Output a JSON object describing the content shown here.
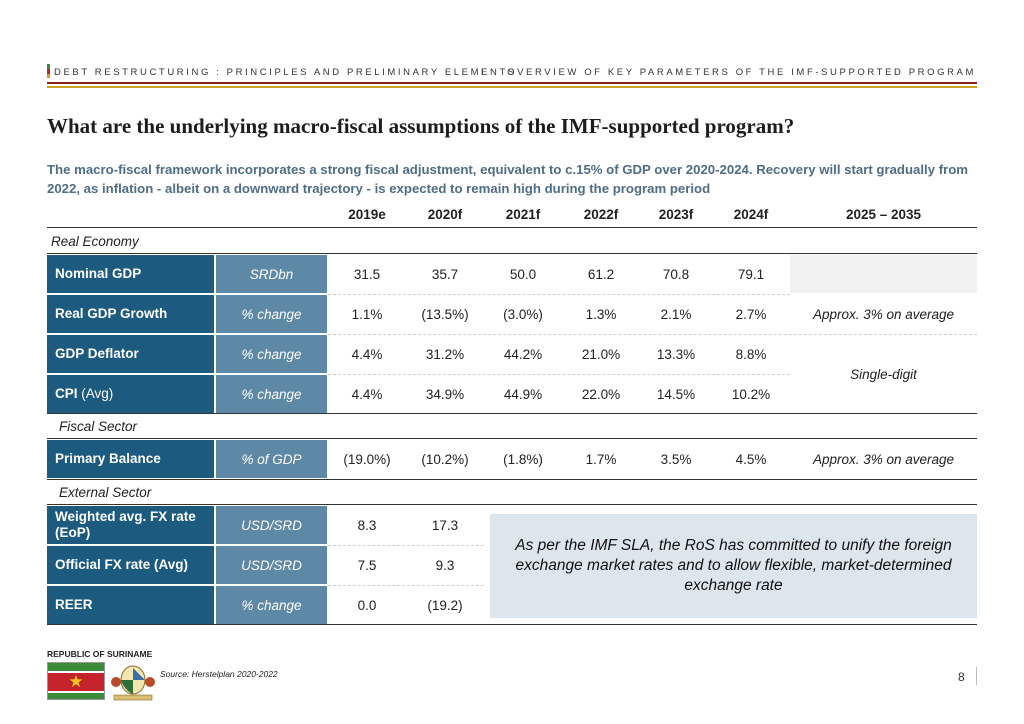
{
  "header": {
    "left": "DEBT RESTRUCTURING : PRINCIPLES AND PRELIMINARY ELEMENTS",
    "separator": "I",
    "right": "OVERVIEW OF KEY PARAMETERS OF THE IMF-SUPPORTED PROGRAM",
    "colors": {
      "rule_red": "#8b1e1e",
      "rule_gold": "#c9a227"
    }
  },
  "title": "What are the underlying macro-fiscal assumptions of the IMF-supported program?",
  "subtitle": "The macro-fiscal framework incorporates a strong fiscal adjustment, equivalent to c.15% of GDP over 2020-2024. Recovery will start gradually from 2022, as inflation - albeit on a downward trajectory - is expected to remain high during the program period",
  "table": {
    "columns": [
      "2019e",
      "2020f",
      "2021f",
      "2022f",
      "2023f",
      "2024f",
      "2025 – 2035"
    ],
    "sections": {
      "real_economy": "Real Economy",
      "fiscal_sector": "Fiscal Sector",
      "external_sector": "External Sector"
    },
    "rows": [
      {
        "label": "Nominal GDP",
        "unit": "SRDbn",
        "values": [
          "31.5",
          "35.7",
          "50.0",
          "61.2",
          "70.8",
          "79.1"
        ]
      },
      {
        "label": "Real GDP Growth",
        "unit": "% change",
        "values": [
          "1.1%",
          "(13.5%)",
          "(3.0%)",
          "1.3%",
          "2.1%",
          "2.7%"
        ]
      },
      {
        "label": "GDP Deflator",
        "unit": "% change",
        "values": [
          "4.4%",
          "31.2%",
          "44.2%",
          "21.0%",
          "13.3%",
          "8.8%"
        ]
      },
      {
        "label": "CPI",
        "label_suffix": "(Avg)",
        "unit": "% change",
        "values": [
          "4.4%",
          "34.9%",
          "44.9%",
          "22.0%",
          "14.5%",
          "10.2%"
        ]
      },
      {
        "label": "Primary Balance",
        "unit": "% of GDP",
        "values": [
          "(19.0%)",
          "(10.2%)",
          "(1.8%)",
          "1.7%",
          "3.5%",
          "4.5%"
        ]
      },
      {
        "label": "Weighted avg. FX rate (EoP)",
        "unit": "USD/SRD",
        "values": [
          "8.3",
          "17.3"
        ]
      },
      {
        "label": "Official FX rate (Avg)",
        "unit": "USD/SRD",
        "values": [
          "7.5",
          "9.3"
        ]
      },
      {
        "label": "REER",
        "unit": "% change",
        "values": [
          "0.0",
          "(19.2)"
        ]
      }
    ],
    "notes": {
      "real_gdp_growth": "Approx. 3% on average",
      "deflator_cpi": "Single-digit",
      "primary_balance": "Approx. 3% on average"
    },
    "fx_box_text": "As per the IMF SLA, the RoS has committed to unify the foreign exchange market rates and to allow flexible, market-determined exchange rate",
    "colors": {
      "label_fill": "#1c5a80",
      "unit_fill": "#5d89a6",
      "box_fill": "#dde5ed"
    }
  },
  "footer": {
    "country": "REPUBLIC OF SURINAME",
    "source": "Source: Herstelplan 2020-2022",
    "page": "8"
  }
}
